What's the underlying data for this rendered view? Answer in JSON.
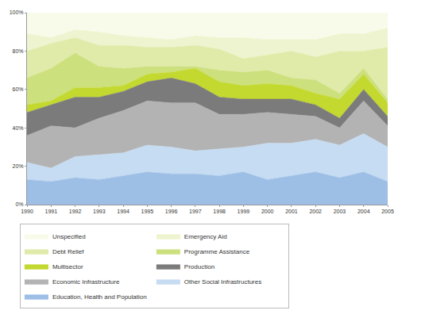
{
  "chart_data": {
    "type": "area",
    "stacked": true,
    "grid": false,
    "legend": "bottom",
    "x": [
      1990,
      1991,
      1992,
      1993,
      1994,
      1995,
      1996,
      1997,
      1998,
      1999,
      2000,
      2001,
      2002,
      2003,
      2004,
      2005
    ],
    "xlim": [
      1990,
      2005
    ],
    "xticks": [
      1990,
      1991,
      1992,
      1993,
      1994,
      1995,
      1996,
      1997,
      1998,
      1999,
      2000,
      2001,
      2002,
      2003,
      2004,
      2005
    ],
    "ylim": [
      0,
      100
    ],
    "yticks": [
      {
        "value": 0,
        "label": "0%"
      },
      {
        "value": 20,
        "label": "20%"
      },
      {
        "value": 40,
        "label": "40%"
      },
      {
        "value": 60,
        "label": "60%"
      },
      {
        "value": 80,
        "label": "80%"
      },
      {
        "value": 100,
        "label": "100%"
      }
    ],
    "series": [
      {
        "name": "Education, Health and Population",
        "color": "#9dbfe6",
        "values": [
          13,
          12,
          14,
          13,
          15,
          17,
          16,
          16,
          15,
          17,
          13,
          15,
          17,
          14,
          17,
          12
        ]
      },
      {
        "name": "Other Social Infrastructures",
        "color": "#c6dcf2",
        "values": [
          9,
          7,
          11,
          13,
          12,
          14,
          14,
          12,
          14,
          13,
          19,
          17,
          17,
          17,
          20,
          18
        ]
      },
      {
        "name": "Economic Infrastructure",
        "color": "#b3b3b3",
        "values": [
          14,
          22,
          15,
          19,
          22,
          23,
          23,
          25,
          18,
          17,
          16,
          15,
          12,
          9,
          17,
          11
        ]
      },
      {
        "name": "Production",
        "color": "#7b7b7b",
        "values": [
          12,
          11,
          16,
          11,
          10,
          10,
          13,
          10,
          9,
          8,
          7,
          8,
          6,
          5,
          6,
          5
        ]
      },
      {
        "name": "Multisector",
        "color": "#c3d92f",
        "values": [
          4,
          2,
          5,
          5,
          3,
          4,
          3,
          8,
          8,
          7,
          8,
          7,
          6,
          10,
          8,
          7
        ]
      },
      {
        "name": "Programme Assistance",
        "color": "#cde07e",
        "values": [
          14,
          17,
          18,
          11,
          9,
          4,
          3,
          1,
          6,
          7,
          7,
          4,
          7,
          3,
          3,
          2
        ]
      },
      {
        "name": "Debt Relief",
        "color": "#e0ebaa",
        "values": [
          14,
          13,
          8,
          11,
          12,
          10,
          10,
          11,
          11,
          7,
          8,
          14,
          12,
          22,
          9,
          27
        ]
      },
      {
        "name": "Emergency Aid",
        "color": "#eef4cf",
        "values": [
          9,
          3,
          4,
          7,
          5,
          5,
          4,
          5,
          6,
          11,
          8,
          6,
          9,
          9,
          9,
          10
        ]
      },
      {
        "name": "Unspecified",
        "color": "#f9fbea",
        "values": [
          11,
          13,
          9,
          10,
          12,
          13,
          14,
          12,
          13,
          13,
          14,
          14,
          14,
          11,
          11,
          8
        ]
      }
    ]
  }
}
